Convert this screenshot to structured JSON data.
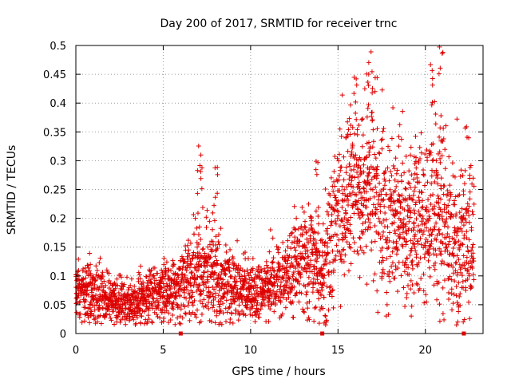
{
  "chart_data": {
    "type": "scatter",
    "title": "Day 200 of 2017, SRMTID for receiver trnc",
    "xlabel": "GPS time / hours",
    "ylabel": "SRMTID / TECUs",
    "xlim": [
      0,
      23.3
    ],
    "ylim": [
      0,
      0.5
    ],
    "x_ticks": [
      0,
      5,
      10,
      15,
      20
    ],
    "y_ticks": [
      0,
      0.05,
      0.1,
      0.15,
      0.2,
      0.25,
      0.3,
      0.35,
      0.4,
      0.45,
      0.5
    ],
    "x_tick_labels": [
      "0",
      "5",
      "10",
      "15",
      "20"
    ],
    "y_tick_labels": [
      "0",
      "0.05",
      "0.1",
      "0.15",
      "0.2",
      "0.25",
      "0.3",
      "0.35",
      "0.4",
      "0.45",
      "0.5"
    ],
    "grid": true,
    "marker": "+",
    "series": [
      {
        "name": "SRMTID",
        "color": "#dd0000",
        "trend": {
          "x": [
            0,
            1,
            2,
            3,
            4,
            5,
            6,
            7,
            8,
            9,
            10,
            11,
            12,
            13,
            14,
            15,
            16,
            17,
            18,
            19,
            20,
            21,
            22,
            22.8
          ],
          "y": [
            0.07,
            0.07,
            0.06,
            0.05,
            0.06,
            0.07,
            0.08,
            0.11,
            0.1,
            0.08,
            0.07,
            0.08,
            0.1,
            0.13,
            0.11,
            0.2,
            0.25,
            0.24,
            0.2,
            0.18,
            0.2,
            0.2,
            0.16,
            0.16
          ]
        },
        "spread": {
          "x": [
            0,
            1,
            2,
            3,
            4,
            5,
            6,
            7,
            8,
            9,
            10,
            11,
            12,
            13,
            14,
            15,
            16,
            17,
            18,
            19,
            20,
            21,
            22,
            22.8
          ],
          "y": [
            0.025,
            0.03,
            0.02,
            0.02,
            0.025,
            0.025,
            0.03,
            0.04,
            0.04,
            0.03,
            0.025,
            0.03,
            0.03,
            0.05,
            0.05,
            0.07,
            0.07,
            0.07,
            0.07,
            0.06,
            0.07,
            0.08,
            0.06,
            0.06
          ]
        },
        "peaks": [
          {
            "x": 0.8,
            "y": 0.16
          },
          {
            "x": 7.1,
            "y": 0.33
          },
          {
            "x": 7.15,
            "y": 0.29
          },
          {
            "x": 7.8,
            "y": 0.23
          },
          {
            "x": 8.1,
            "y": 0.29
          },
          {
            "x": 8.0,
            "y": 0.18
          },
          {
            "x": 13.7,
            "y": 0.3
          },
          {
            "x": 15.6,
            "y": 0.38
          },
          {
            "x": 16.0,
            "y": 0.45
          },
          {
            "x": 16.6,
            "y": 0.47
          },
          {
            "x": 16.9,
            "y": 0.49
          },
          {
            "x": 17.1,
            "y": 0.46
          },
          {
            "x": 16.8,
            "y": 0.42
          },
          {
            "x": 18.5,
            "y": 0.37
          },
          {
            "x": 19.5,
            "y": 0.33
          },
          {
            "x": 20.3,
            "y": 0.47
          },
          {
            "x": 20.5,
            "y": 0.41
          },
          {
            "x": 20.9,
            "y": 0.5
          },
          {
            "x": 20.8,
            "y": 0.38
          },
          {
            "x": 21.0,
            "y": 0.34
          },
          {
            "x": 22.4,
            "y": 0.38
          },
          {
            "x": 22.6,
            "y": 0.3
          },
          {
            "x": 21.9,
            "y": 0.06
          },
          {
            "x": 14.2,
            "y": 0.05
          }
        ]
      }
    ],
    "data_gaps_x": [
      6.0,
      14.1,
      22.2
    ]
  }
}
